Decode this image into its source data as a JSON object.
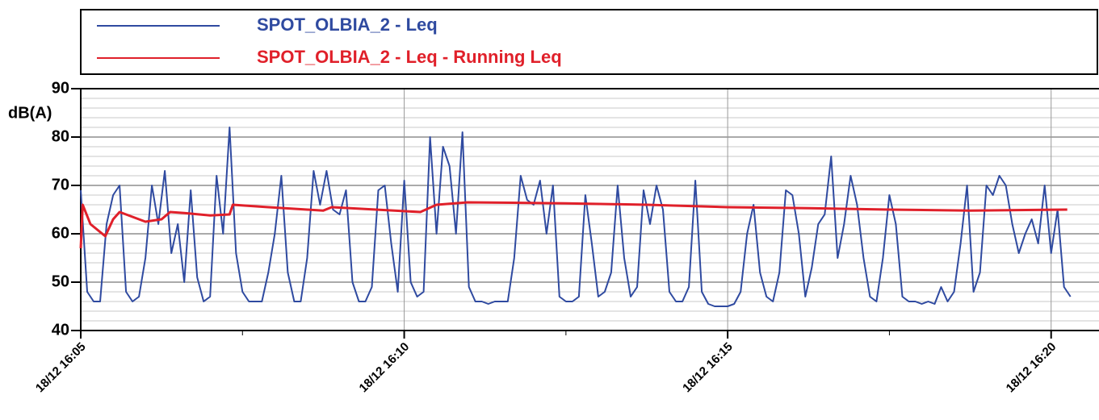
{
  "chart_data": {
    "type": "line",
    "y_label": "dB(A)",
    "series": [
      {
        "name": "SPOT_OLBIA_2 - Leq",
        "color": "#2f4aa0",
        "x": [
          5.0,
          5.1,
          5.2,
          5.3,
          5.4,
          5.5,
          5.6,
          5.7,
          5.8,
          5.9,
          6.0,
          6.1,
          6.2,
          6.3,
          6.4,
          6.5,
          6.6,
          6.7,
          6.8,
          6.9,
          7.0,
          7.1,
          7.2,
          7.3,
          7.4,
          7.5,
          7.6,
          7.7,
          7.8,
          7.9,
          8.0,
          8.1,
          8.2,
          8.3,
          8.4,
          8.5,
          8.6,
          8.7,
          8.8,
          8.9,
          9.0,
          9.1,
          9.2,
          9.3,
          9.4,
          9.5,
          9.6,
          9.7,
          9.8,
          9.9,
          10.0,
          10.1,
          10.2,
          10.3,
          10.4,
          10.5,
          10.6,
          10.7,
          10.8,
          10.9,
          11.0,
          11.1,
          11.2,
          11.3,
          11.4,
          11.5,
          11.6,
          11.7,
          11.8,
          11.9,
          12.0,
          12.1,
          12.2,
          12.3,
          12.4,
          12.5,
          12.6,
          12.7,
          12.8,
          12.9,
          13.0,
          13.1,
          13.2,
          13.3,
          13.4,
          13.5,
          13.6,
          13.7,
          13.8,
          13.9,
          14.0,
          14.1,
          14.2,
          14.3,
          14.4,
          14.5,
          14.6,
          14.7,
          14.8,
          14.9,
          15.0,
          15.1,
          15.2,
          15.3,
          15.4,
          15.5,
          15.6,
          15.7,
          15.8,
          15.9,
          16.0,
          16.1,
          16.2,
          16.3,
          16.4,
          16.5,
          16.6,
          16.7,
          16.8,
          16.9,
          17.0,
          17.1,
          17.2,
          17.3,
          17.4,
          17.5,
          17.6,
          17.7,
          17.8,
          17.9,
          18.0,
          18.1,
          18.2,
          18.3,
          18.4,
          18.5,
          18.6,
          18.7,
          18.8,
          18.9,
          19.0,
          19.1,
          19.2,
          19.3,
          19.4,
          19.5,
          19.6,
          19.7,
          19.8,
          19.9,
          20.0,
          20.1,
          20.2,
          20.3
        ],
        "values": [
          69,
          48,
          46,
          46,
          62,
          68,
          70,
          48,
          46,
          47,
          55,
          70,
          62,
          73,
          56,
          62,
          50,
          69,
          51,
          46,
          47,
          72,
          60,
          82,
          56,
          48,
          46,
          46,
          46,
          52,
          60,
          72,
          52,
          46,
          46,
          55,
          73,
          66,
          73,
          65,
          64,
          69,
          50,
          46,
          46,
          49,
          69,
          70,
          58,
          48,
          71,
          50,
          47,
          48,
          80,
          60,
          78,
          74,
          60,
          81,
          49,
          46,
          46,
          45.5,
          46,
          46,
          46,
          55,
          72,
          67,
          66,
          71,
          60,
          70,
          47,
          46,
          46,
          47,
          68,
          58,
          47,
          48,
          52,
          70,
          55,
          47,
          49,
          69,
          62,
          70,
          65,
          48,
          46,
          46,
          49,
          71,
          48,
          45.5,
          45,
          45,
          45,
          45.5,
          48,
          60,
          66,
          52,
          47,
          46,
          52,
          69,
          68,
          60,
          47,
          53,
          62,
          64,
          76,
          55,
          62,
          72,
          66,
          55,
          47,
          46,
          55,
          68,
          62,
          47,
          46,
          46,
          45.5,
          46,
          45.5,
          49,
          46,
          48,
          58,
          70,
          48,
          52,
          70,
          68,
          72,
          70,
          62,
          56,
          60,
          63,
          58,
          70,
          56,
          65,
          49,
          47
        ]
      },
      {
        "name": "SPOT_OLBIA_2 - Leq - Running Leq",
        "color": "#e0202a",
        "x": [
          5.0,
          5.03,
          5.15,
          5.38,
          5.5,
          5.6,
          6.0,
          6.25,
          6.38,
          6.6,
          7.0,
          7.3,
          7.35,
          7.9,
          8.5,
          8.75,
          8.88,
          10.25,
          10.5,
          10.98,
          12.5,
          13.75,
          15.0,
          16.25,
          17.5,
          18.75,
          20.25
        ],
        "values": [
          57,
          66,
          62,
          59.5,
          63,
          64.5,
          62.5,
          63,
          64.5,
          64.3,
          63.8,
          64,
          66,
          65.5,
          65,
          64.8,
          65.5,
          64.5,
          66,
          66.5,
          66.3,
          66,
          65.5,
          65.3,
          65,
          64.8,
          65
        ]
      }
    ],
    "xlim": [
      5,
      20.74
    ],
    "xticks": [
      {
        "value": 5,
        "label": "18/12 16:05"
      },
      {
        "value": 10,
        "label": "18/12 16:10"
      },
      {
        "value": 15,
        "label": "18/12 16:15"
      },
      {
        "value": 20,
        "label": "18/12 16:20"
      }
    ],
    "xticks_minor": [
      7.5,
      12.5,
      17.5
    ],
    "ylim": [
      40,
      90
    ],
    "yticks": [
      40,
      50,
      60,
      70,
      80,
      90
    ],
    "yticks_minor": [
      42,
      44,
      46,
      48,
      52,
      54,
      56,
      58,
      62,
      64,
      66,
      68,
      72,
      74,
      76,
      78,
      82,
      84,
      86,
      88
    ],
    "grid": true
  }
}
